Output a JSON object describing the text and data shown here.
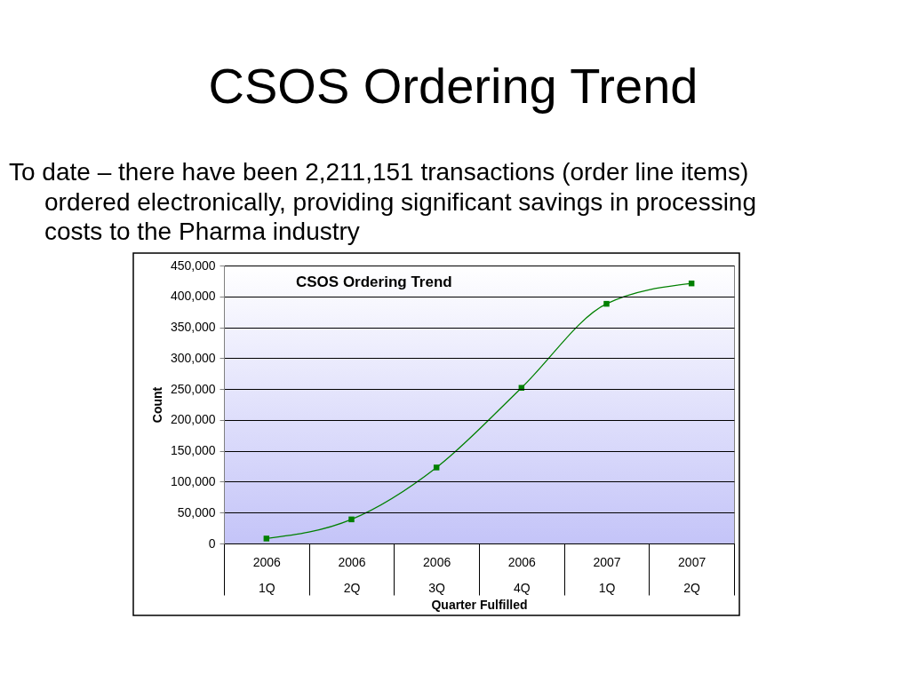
{
  "chart_data": {
    "type": "line",
    "title": "CSOS Ordering Trend",
    "subtitle": "To date – there have been 2,211,151 transactions (order line items)\nordered electronically, providing significant savings in processing\ncosts to the Pharma industry",
    "annotations": [
      "CSOS Ordering Trend"
    ],
    "xlabel": "Quarter Fulfilled",
    "ylabel": "Count",
    "categories": [
      "2006\n1Q",
      "2006\n2Q",
      "2006\n3Q",
      "2006\n4Q",
      "2007\n1Q",
      "2007\n2Q"
    ],
    "series": [
      {
        "color": "#008000",
        "values": [
          8000,
          39000,
          123000,
          252000,
          388000,
          421000
        ]
      }
    ],
    "ylim": [
      0,
      450000
    ],
    "yticks": [
      0,
      {
        "value": 50000,
        "label": "50,000"
      },
      {
        "value": 100000,
        "label": "100,000"
      },
      {
        "value": 150000,
        "label": "150,000"
      },
      {
        "value": 200000,
        "label": "200,000"
      },
      {
        "value": 250000,
        "label": "250,000"
      },
      {
        "value": 300000,
        "label": "300,000"
      },
      {
        "value": 350000,
        "label": "350,000"
      },
      {
        "value": 400000,
        "label": "400,000"
      },
      {
        "value": 450000,
        "label": "450,000"
      }
    ],
    "grid": "y",
    "marker": "square",
    "line_style": "solid"
  }
}
